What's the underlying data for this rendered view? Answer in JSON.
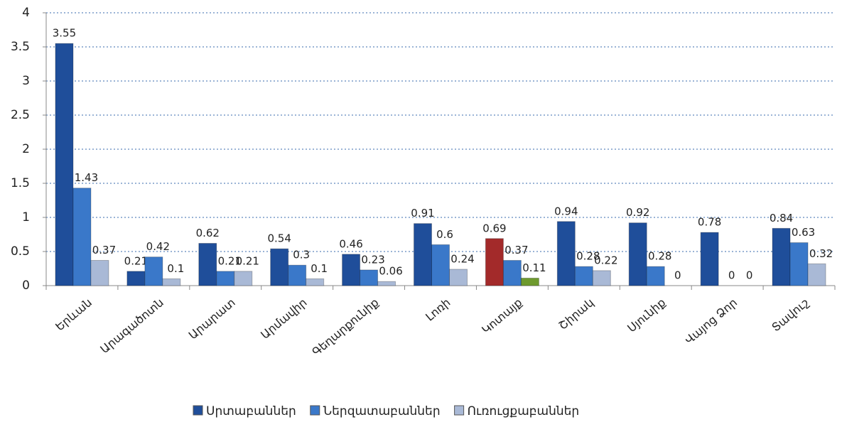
{
  "chart_data": {
    "type": "bar",
    "categories": [
      "Երևան",
      "Արագածոտն",
      "Արարատ",
      "Արմավիր",
      "Գեղարքունիք",
      "Լոռի",
      "Կոտայք",
      "Շիրակ",
      "Սյունիք",
      "Վայոց Ձոր",
      "Տավուշ"
    ],
    "series": [
      {
        "name": "Սրտաբաններ",
        "color": "#1f4e9a",
        "values": [
          3.55,
          0.21,
          0.62,
          0.54,
          0.46,
          0.91,
          0.69,
          0.94,
          0.92,
          0.78,
          0.84
        ],
        "colors": [
          "#1f4e9a",
          "#1f4e9a",
          "#1f4e9a",
          "#1f4e9a",
          "#1f4e9a",
          "#1f4e9a",
          "#a32a2a",
          "#1f4e9a",
          "#1f4e9a",
          "#1f4e9a",
          "#1f4e9a"
        ]
      },
      {
        "name": "Ներզատաբաններ",
        "color": "#3a78c9",
        "values": [
          1.43,
          0.42,
          0.21,
          0.3,
          0.23,
          0.6,
          0.37,
          0.28,
          0.28,
          0,
          0.63
        ],
        "colors": [
          "#3a78c9",
          "#3a78c9",
          "#3a78c9",
          "#3a78c9",
          "#3a78c9",
          "#3a78c9",
          "#3a78c9",
          "#3a78c9",
          "#3a78c9",
          "#3a78c9",
          "#3a78c9"
        ]
      },
      {
        "name": "Ուռուցքաբաններ",
        "color": "#a9b9d6",
        "values": [
          0.37,
          0.1,
          0.21,
          0.1,
          0.06,
          0.24,
          0.11,
          0.22,
          0,
          0,
          0.32
        ],
        "colors": [
          "#a9b9d6",
          "#a9b9d6",
          "#a9b9d6",
          "#a9b9d6",
          "#a9b9d6",
          "#a9b9d6",
          "#6e9a2e",
          "#a9b9d6",
          "#a9b9d6",
          "#a9b9d6",
          "#a9b9d6"
        ]
      }
    ],
    "ylim": [
      0,
      4
    ],
    "yticks": [
      0,
      0.5,
      1,
      1.5,
      2,
      2.5,
      3,
      3.5,
      4
    ],
    "grid": true,
    "legend": "bottom"
  }
}
